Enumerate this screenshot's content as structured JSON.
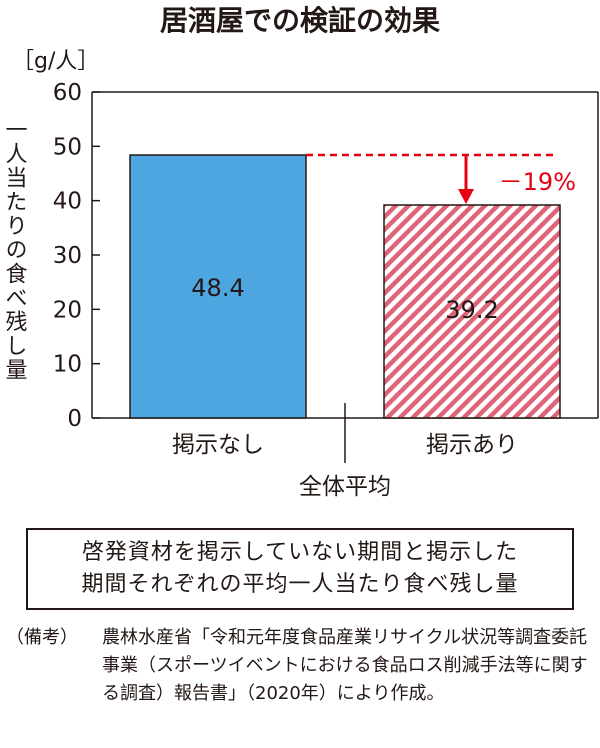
{
  "chart_data": {
    "type": "bar",
    "title": "居酒屋での検証の効果",
    "unit": "［g/人］",
    "ylabel": "一人当たりの食べ残し量",
    "xlabel": "全体平均",
    "categories": [
      "掲示なし",
      "掲示あり"
    ],
    "values": [
      48.4,
      39.2
    ],
    "value_labels": [
      "48.4",
      "39.2"
    ],
    "ylim": [
      0,
      60
    ],
    "yticks": [
      "0",
      "10",
      "20",
      "30",
      "40",
      "50",
      "60"
    ],
    "annotation": "－19%",
    "grid": false,
    "colors": {
      "bar1": "#4da6e0",
      "bar2_stripe": "#e06478",
      "bar2_bg": "#ffffff",
      "annotation": "#e60012",
      "axis": "#231815"
    }
  },
  "caption": {
    "line1": "啓発資材を掲示していない期間と掲示した",
    "line2": "期間それぞれの平均一人当たり食べ残し量"
  },
  "source": {
    "label": "（備考）",
    "text": "農林水産省「令和元年度食品産業リサイクル状況等調査委託事業（スポーツイベントにおける食品ロス削減手法等に関する調査）報告書」（2020年）により作成。"
  }
}
